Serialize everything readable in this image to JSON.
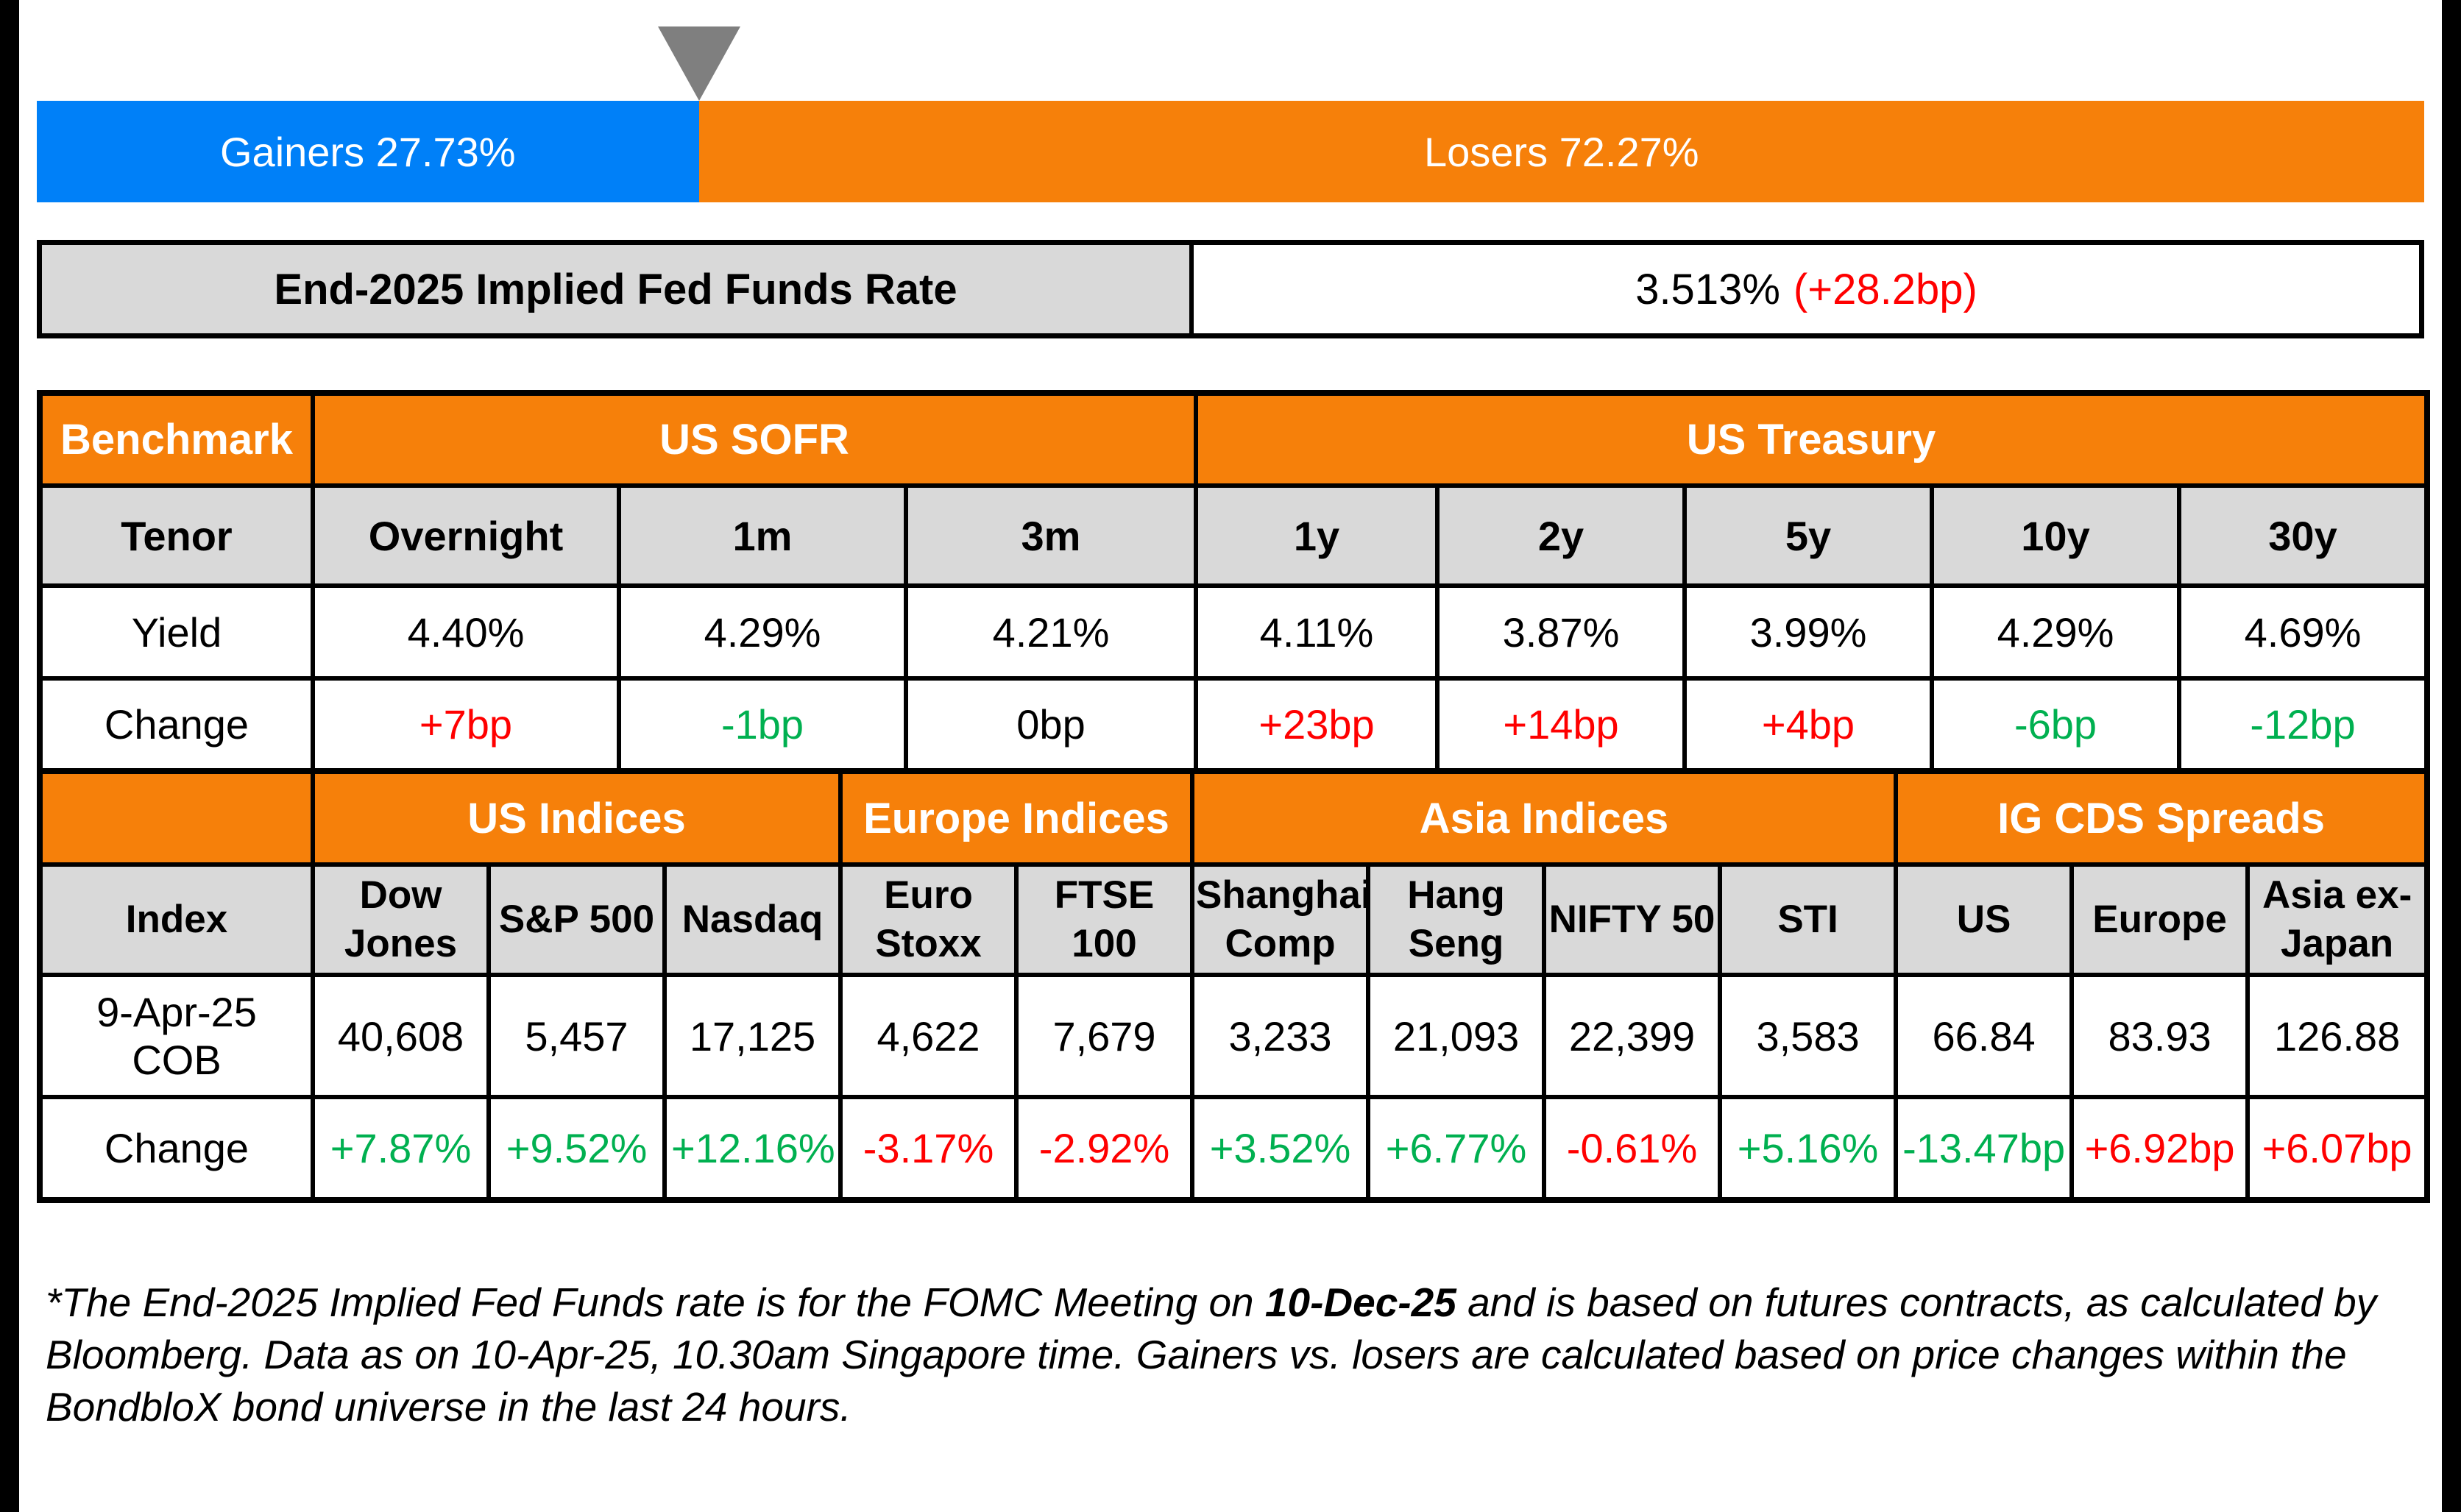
{
  "colors": {
    "gainers_blue": "#0080F8",
    "losers_orange": "#F6800A",
    "marker_gray": "#7F7F7F",
    "header_gray": "#D9D9D9",
    "positive_green": "#00B050",
    "negative_red": "#FF0000",
    "border_black": "#000000"
  },
  "bar": {
    "gainers_label": "Gainers 27.73%",
    "losers_label": "Losers 72.27%",
    "gainers_pct": 27.73,
    "losers_pct": 72.27
  },
  "fed_funds": {
    "label": "End-2025 Implied Fed Funds Rate",
    "value": "3.513%",
    "change": "(+28.2bp)"
  },
  "benchmark_table": {
    "corner_label": "Benchmark",
    "groups": [
      {
        "label": "US SOFR",
        "span": 3
      },
      {
        "label": "US Treasury",
        "span": 5
      }
    ],
    "row_labels": {
      "tenor": "Tenor",
      "yield": "Yield",
      "change": "Change"
    },
    "columns": [
      {
        "tenor": "Overnight",
        "yield": "4.40%",
        "change": "+7bp",
        "change_color": "red"
      },
      {
        "tenor": "1m",
        "yield": "4.29%",
        "change": "-1bp",
        "change_color": "green"
      },
      {
        "tenor": "3m",
        "yield": "4.21%",
        "change": "0bp",
        "change_color": "black"
      },
      {
        "tenor": "1y",
        "yield": "4.11%",
        "change": "+23bp",
        "change_color": "red"
      },
      {
        "tenor": "2y",
        "yield": "3.87%",
        "change": "+14bp",
        "change_color": "red"
      },
      {
        "tenor": "5y",
        "yield": "3.99%",
        "change": "+4bp",
        "change_color": "red"
      },
      {
        "tenor": "10y",
        "yield": "4.29%",
        "change": "-6bp",
        "change_color": "green"
      },
      {
        "tenor": "30y",
        "yield": "4.69%",
        "change": "-12bp",
        "change_color": "green"
      }
    ]
  },
  "indices_table": {
    "corner_label": "",
    "groups": [
      {
        "label": "US Indices",
        "span": 3
      },
      {
        "label": "Europe Indices",
        "span": 2
      },
      {
        "label": "Asia Indices",
        "span": 4
      },
      {
        "label": "IG CDS Spreads",
        "span": 3
      }
    ],
    "row_labels": {
      "index": "Index",
      "cob": "9-Apr-25 COB",
      "change": "Change"
    },
    "columns": [
      {
        "name": "Dow Jones",
        "cob": "40,608",
        "change": "+7.87%",
        "change_color": "green"
      },
      {
        "name": "S&P 500",
        "cob": "5,457",
        "change": "+9.52%",
        "change_color": "green"
      },
      {
        "name": "Nasdaq",
        "cob": "17,125",
        "change": "+12.16%",
        "change_color": "green"
      },
      {
        "name": "Euro Stoxx",
        "cob": "4,622",
        "change": "-3.17%",
        "change_color": "red"
      },
      {
        "name": "FTSE 100",
        "cob": "7,679",
        "change": "-2.92%",
        "change_color": "red"
      },
      {
        "name": "Shanghai Comp",
        "cob": "3,233",
        "change": "+3.52%",
        "change_color": "green"
      },
      {
        "name": "Hang Seng",
        "cob": "21,093",
        "change": "+6.77%",
        "change_color": "green"
      },
      {
        "name": "NIFTY 50",
        "cob": "22,399",
        "change": "-0.61%",
        "change_color": "red"
      },
      {
        "name": "STI",
        "cob": "3,583",
        "change": "+5.16%",
        "change_color": "green"
      },
      {
        "name": "US",
        "cob": "66.84",
        "change": "-13.47bp",
        "change_color": "green"
      },
      {
        "name": "Europe",
        "cob": "83.93",
        "change": "+6.92bp",
        "change_color": "red"
      },
      {
        "name": "Asia ex-Japan",
        "cob": "126.88",
        "change": "+6.07bp",
        "change_color": "red"
      }
    ]
  },
  "footnote": {
    "part1": "*The End-2025 Implied Fed Funds rate is for the FOMC Meeting on ",
    "bold": "10-Dec-25",
    "part2": " and is based on futures contracts, as calculated by Bloomberg. Data as on 10-Apr-25, 10.30am Singapore time. Gainers vs. losers are calculated based on price changes within the BondbloX bond universe in the last 24 hours."
  },
  "chart_data": [
    {
      "type": "bar",
      "title": "Gainers vs Losers (BondbloX bond universe, last 24 hours)",
      "orientation": "horizontal-stacked",
      "categories": [
        "Gainers",
        "Losers"
      ],
      "values": [
        27.73,
        72.27
      ],
      "unit": "%",
      "colors": [
        "#0080F8",
        "#F6800A"
      ],
      "xlim": [
        0,
        100
      ],
      "annotation": "gray marker at 27.73% boundary"
    },
    {
      "type": "table",
      "title": "End-2025 Implied Fed Funds Rate",
      "columns": [
        "Rate",
        "Change"
      ],
      "rows": [
        [
          "3.513%",
          "+28.2bp"
        ]
      ]
    },
    {
      "type": "table",
      "title": "Benchmark",
      "column_groups": {
        "US SOFR": [
          "Overnight",
          "1m",
          "3m"
        ],
        "US Treasury": [
          "1y",
          "2y",
          "5y",
          "10y",
          "30y"
        ]
      },
      "columns": [
        "Tenor",
        "Overnight",
        "1m",
        "3m",
        "1y",
        "2y",
        "5y",
        "10y",
        "30y"
      ],
      "rows": [
        [
          "Yield",
          "4.40%",
          "4.29%",
          "4.21%",
          "4.11%",
          "3.87%",
          "3.99%",
          "4.29%",
          "4.69%"
        ],
        [
          "Change",
          "+7bp",
          "-1bp",
          "0bp",
          "+23bp",
          "+14bp",
          "+4bp",
          "-6bp",
          "-12bp"
        ]
      ]
    },
    {
      "type": "table",
      "title": "Indices and IG CDS Spreads",
      "column_groups": {
        "US Indices": [
          "Dow Jones",
          "S&P 500",
          "Nasdaq"
        ],
        "Europe Indices": [
          "Euro Stoxx",
          "FTSE 100"
        ],
        "Asia Indices": [
          "Shanghai Comp",
          "Hang Seng",
          "NIFTY 50",
          "STI"
        ],
        "IG CDS Spreads": [
          "US",
          "Europe",
          "Asia ex-Japan"
        ]
      },
      "columns": [
        "Index",
        "Dow Jones",
        "S&P 500",
        "Nasdaq",
        "Euro Stoxx",
        "FTSE 100",
        "Shanghai Comp",
        "Hang Seng",
        "NIFTY 50",
        "STI",
        "US",
        "Europe",
        "Asia ex-Japan"
      ],
      "rows": [
        [
          "9-Apr-25 COB",
          "40,608",
          "5,457",
          "17,125",
          "4,622",
          "7,679",
          "3,233",
          "21,093",
          "22,399",
          "3,583",
          "66.84",
          "83.93",
          "126.88"
        ],
        [
          "Change",
          "+7.87%",
          "+9.52%",
          "+12.16%",
          "-3.17%",
          "-2.92%",
          "+3.52%",
          "+6.77%",
          "-0.61%",
          "+5.16%",
          "-13.47bp",
          "+6.92bp",
          "+6.07bp"
        ]
      ]
    }
  ]
}
